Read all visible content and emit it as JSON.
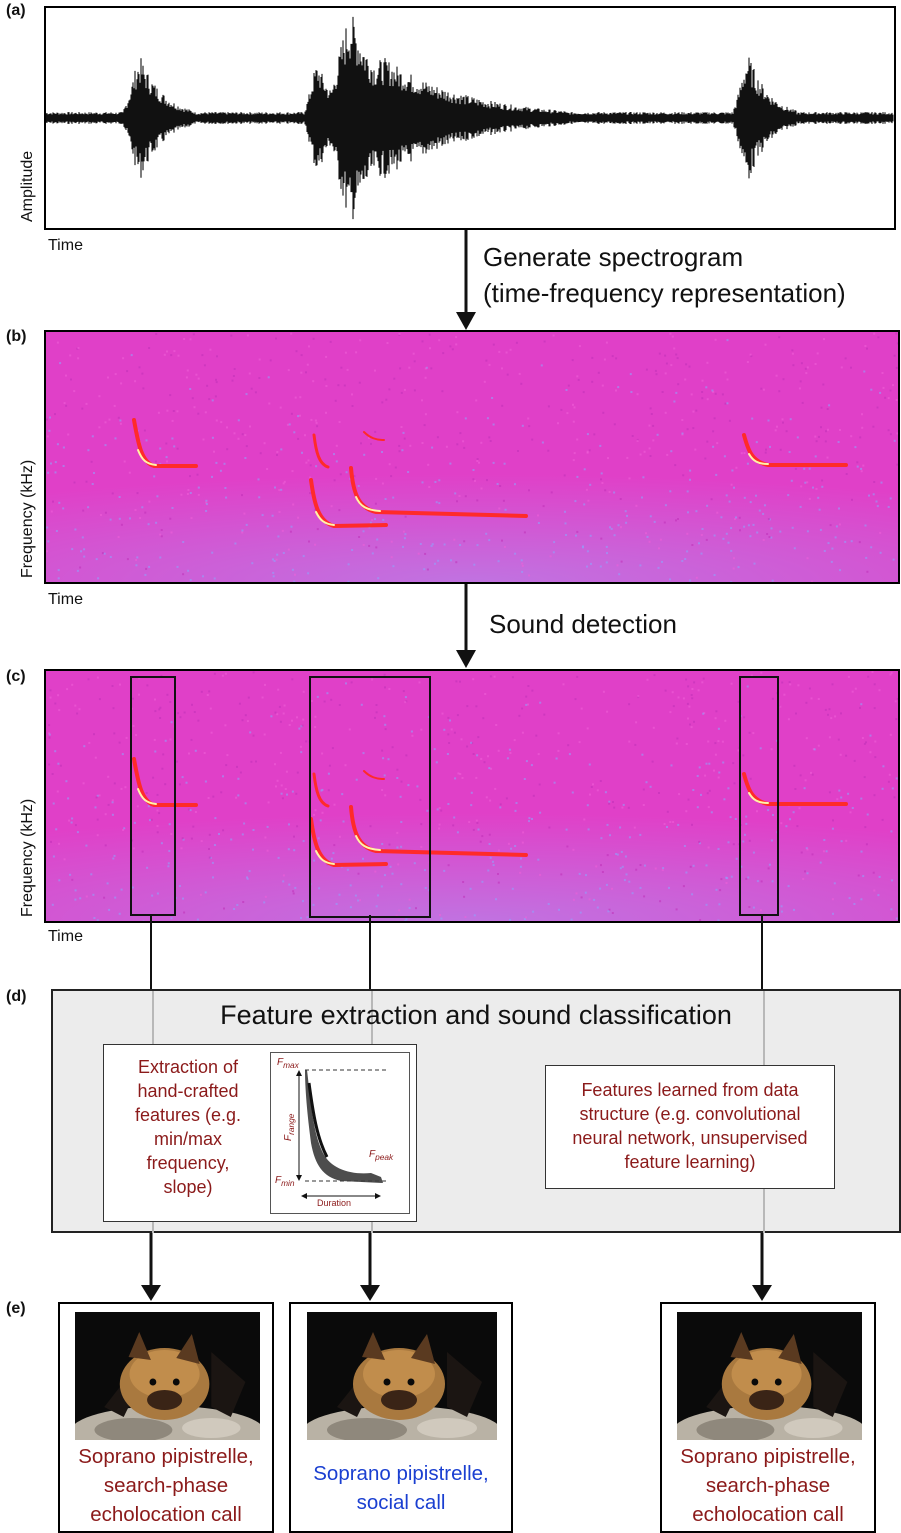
{
  "panels": {
    "a": {
      "letter": "(a)",
      "ylabel": "Amplitude",
      "xlabel": "Time"
    },
    "b": {
      "letter": "(b)",
      "ylabel": "Frequency (kHz)",
      "xlabel": "Time"
    },
    "c": {
      "letter": "(c)",
      "ylabel": "Frequency (kHz)",
      "xlabel": "Time"
    },
    "d": {
      "letter": "(d)"
    },
    "e": {
      "letter": "(e)"
    }
  },
  "steps": {
    "spectrogram_line1": "Generate spectrogram",
    "spectrogram_line2": "(time-frequency representation)",
    "detection": "Sound detection"
  },
  "features": {
    "title": "Feature extraction and sound classification",
    "handcrafted": [
      "Extraction of",
      "hand-crafted",
      "features (e.g.",
      "min/max",
      "frequency,",
      "slope)"
    ],
    "learned": [
      "Features learned from data",
      "structure (e.g. convolutional",
      "neural network, unsupervised",
      "feature learning)"
    ],
    "inset": {
      "fmax": "F",
      "fmax_sub": "max",
      "fmin": "F",
      "fmin_sub": "min",
      "frange": "F",
      "frange_sub": "range",
      "fpeak": "F",
      "fpeak_sub": "peak",
      "duration": "Duration"
    }
  },
  "results": [
    {
      "lines": [
        "Soprano pipistrelle,",
        "search-phase",
        "echolocation call"
      ],
      "color": "#8b1a1a"
    },
    {
      "lines": [
        "Soprano pipistrelle,",
        "social call"
      ],
      "color": "#1a3fd1"
    },
    {
      "lines": [
        "Soprano pipistrelle,",
        "search-phase",
        "echolocation call"
      ],
      "color": "#8b1a1a"
    }
  ],
  "colors": {
    "spectrogram_bg": "#e040c8",
    "call": "#ff2a2a",
    "feature_text": "#8b1a1a",
    "social_text": "#1a3fd1"
  },
  "icons": [
    "bat-photo"
  ]
}
